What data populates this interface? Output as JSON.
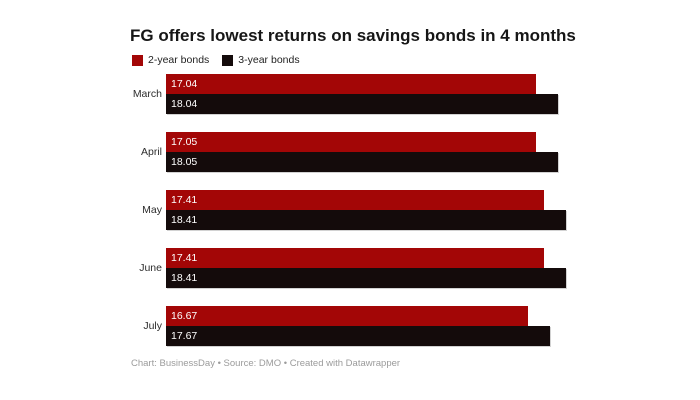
{
  "chart": {
    "title": "FG offers lowest returns on savings bonds in 4 months"
  },
  "legend": [
    {
      "label": "2-year bonds",
      "color": "#a30606"
    },
    {
      "label": "3-year bonds",
      "color": "#140b0b"
    }
  ],
  "chart_data": {
    "type": "bar",
    "orientation": "horizontal",
    "title": "FG offers lowest returns on savings bonds in 4 months",
    "categories": [
      "March",
      "April",
      "May",
      "June",
      "July"
    ],
    "series": [
      {
        "name": "2-year bonds",
        "color": "#a30606",
        "values": [
          17.04,
          17.05,
          17.41,
          17.41,
          16.67
        ]
      },
      {
        "name": "3-year bonds",
        "color": "#140b0b",
        "values": [
          18.04,
          18.05,
          18.41,
          18.41,
          17.67
        ]
      }
    ],
    "value_labels_shown": true,
    "value_label_color": "#ffffff",
    "xlim": [
      0,
      18.5
    ],
    "grid": false,
    "axis_ticks_shown": false,
    "legend_position": "top-left"
  },
  "footer": {
    "text": "Chart: BusinessDay • Source: DMO • Created with Datawrapper"
  }
}
